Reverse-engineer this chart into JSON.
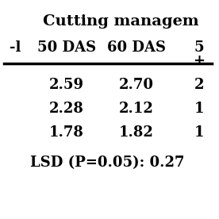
{
  "title": "Cutting managem",
  "col_header_line1": [
    "",
    "50 DAS",
    "60 DAS",
    "5"
  ],
  "col_header_line2": [
    "",
    "",
    "",
    "+"
  ],
  "col_header_prefix": "-l",
  "rows": [
    [
      "",
      "2.59",
      "2.70",
      "2"
    ],
    [
      "",
      "2.28",
      "2.12",
      "1"
    ],
    [
      "",
      "1.78",
      "1.82",
      "1"
    ]
  ],
  "lsd_text": "LSD (P=0.05): 0.27",
  "bg_color": "#ffffff",
  "text_color": "#000000",
  "font_size": 13,
  "title_font_size": 14,
  "header_font_size": 13
}
